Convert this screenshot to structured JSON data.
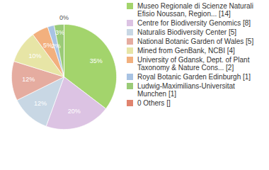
{
  "chart_data": {
    "type": "pie",
    "categories": [
      "Museo Regionale di Scienze Naturali Efisio Noussan, Region... [14]",
      "Centre for Biodiversity Genomics [8]",
      "Naturalis Biodiversity Center [5]",
      "National Botanic Garden of Wales [5]",
      "Mined from GenBank, NCBI [4]",
      "University of Gdansk, Dept. of Plant Taxonomy & Nature Cons... [2]",
      "Royal Botanic Garden Edinburgh [1]",
      "Ludwig-Maximilians-Universitat Munchen [1]",
      "0 Others []"
    ],
    "values": [
      35,
      20,
      12,
      12,
      10,
      5,
      2,
      3,
      0
    ],
    "value_labels": [
      "35%",
      "20%",
      "12%",
      "12%",
      "10%",
      "5%",
      "2%",
      "3%",
      "0%"
    ],
    "colors": [
      "#a3d46c",
      "#dcc3e3",
      "#c8d7e4",
      "#e5aca0",
      "#e7e5a6",
      "#f2b07e",
      "#a8c3e3",
      "#9acb77",
      "#e0836e"
    ],
    "data_labels": true,
    "legend": "right"
  }
}
